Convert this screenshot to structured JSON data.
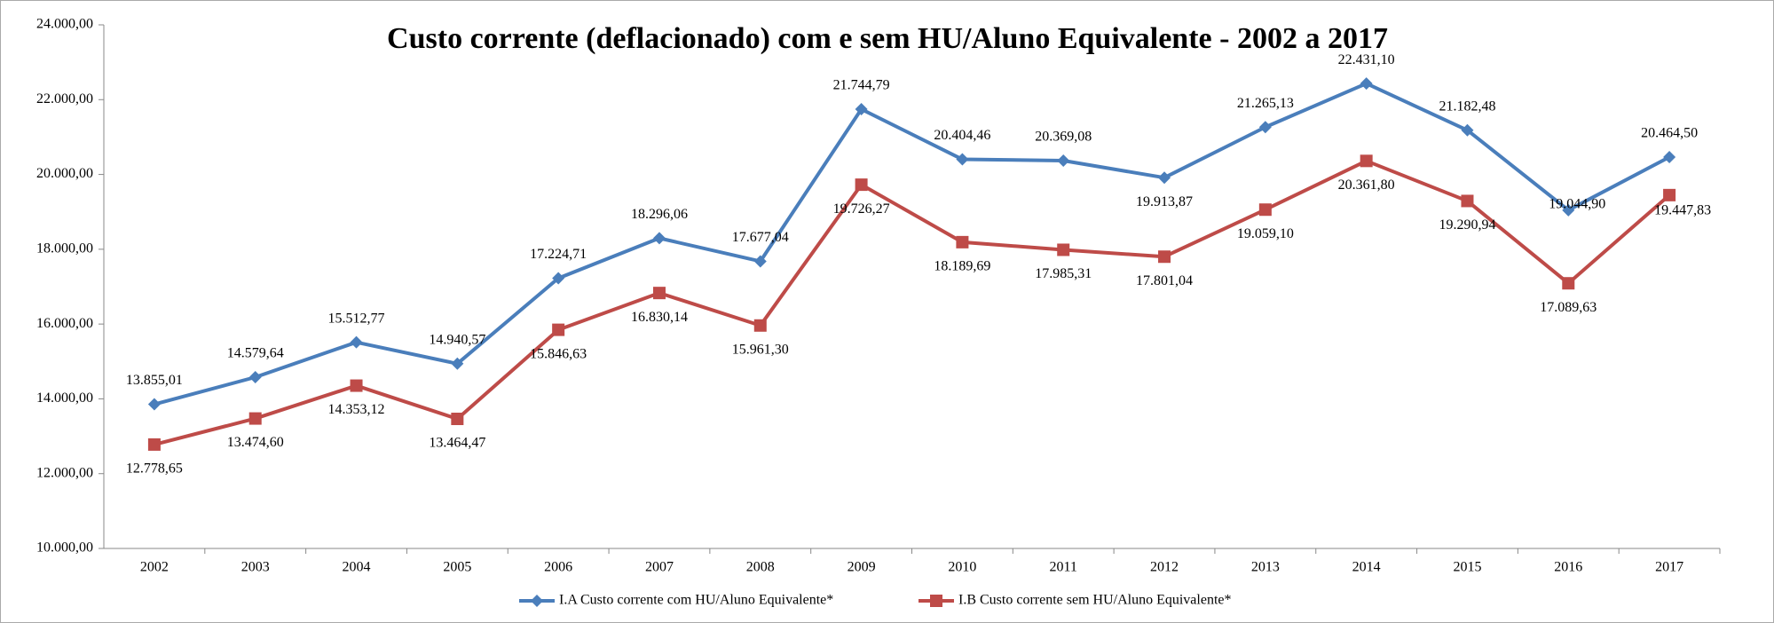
{
  "chart_data": {
    "type": "line",
    "title": "Custo corrente (deflacionado) com e sem HU/Aluno Equivalente - 2002 a 2017",
    "categories": [
      "2002",
      "2003",
      "2004",
      "2005",
      "2006",
      "2007",
      "2008",
      "2009",
      "2010",
      "2011",
      "2012",
      "2013",
      "2014",
      "2015",
      "2016",
      "2017"
    ],
    "series": [
      {
        "name": "I.A Custo corrente com HU/Aluno Equivalente*",
        "color": "#4a7ebb",
        "marker": "diamond",
        "values": [
          13855.01,
          14579.64,
          15512.77,
          14940.57,
          17224.71,
          18296.06,
          17677.04,
          21744.79,
          20404.46,
          20369.08,
          19913.87,
          21265.13,
          22431.1,
          21182.48,
          19044.9,
          20464.5
        ],
        "value_labels": [
          "13.855,01",
          "14.579,64",
          "15.512,77",
          "14.940,57",
          "17.224,71",
          "18.296,06",
          "17.677,04",
          "21.744,79",
          "20.404,46",
          "20.369,08",
          "19.913,87",
          "21.265,13",
          "22.431,10",
          "21.182,48",
          "19.044,90",
          "20.464,50"
        ]
      },
      {
        "name": "I.B Custo corrente sem HU/Aluno Equivalente*",
        "color": "#be4b48",
        "marker": "square",
        "values": [
          12778.65,
          13474.6,
          14353.12,
          13464.47,
          15846.63,
          16830.14,
          15961.3,
          19726.27,
          18189.69,
          17985.31,
          17801.04,
          19059.1,
          20361.8,
          19290.94,
          17089.63,
          19447.83
        ],
        "value_labels": [
          "12.778,65",
          "13.474,60",
          "14.353,12",
          "13.464,47",
          "15.846,63",
          "16.830,14",
          "15.961,30",
          "19.726,27",
          "18.189,69",
          "17.985,31",
          "17.801,04",
          "19.059,10",
          "20.361,80",
          "19.290,94",
          "17.089,63",
          "19.447,83"
        ]
      }
    ],
    "ylim": [
      10000,
      24000
    ],
    "yticks": [
      {
        "value": 10000,
        "label": "10.000,00"
      },
      {
        "value": 12000,
        "label": "12.000,00"
      },
      {
        "value": 14000,
        "label": "14.000,00"
      },
      {
        "value": 16000,
        "label": "16.000,00"
      },
      {
        "value": 18000,
        "label": "18.000,00"
      },
      {
        "value": 20000,
        "label": "20.000,00"
      },
      {
        "value": 22000,
        "label": "22.000,00"
      },
      {
        "value": 24000,
        "label": "24.000,00"
      }
    ],
    "grid": false,
    "legend": "bottom"
  }
}
